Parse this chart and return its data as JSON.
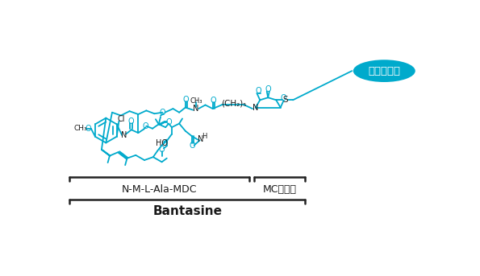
{
  "background_color": "#ffffff",
  "molecule_color": "#00aacc",
  "text_color_dark": "#1a1a1a",
  "bracket_color": "#222222",
  "ellipse_fill": "#00aacc",
  "ellipse_text": "曲妥珠單抗",
  "ellipse_text_color": "#ffffff",
  "label_nmdc": "N-M-L-Ala-MDC",
  "label_mc": "MC連接子",
  "label_bantasine": "Bantasine",
  "figsize": [
    5.95,
    3.43
  ],
  "dpi": 100
}
